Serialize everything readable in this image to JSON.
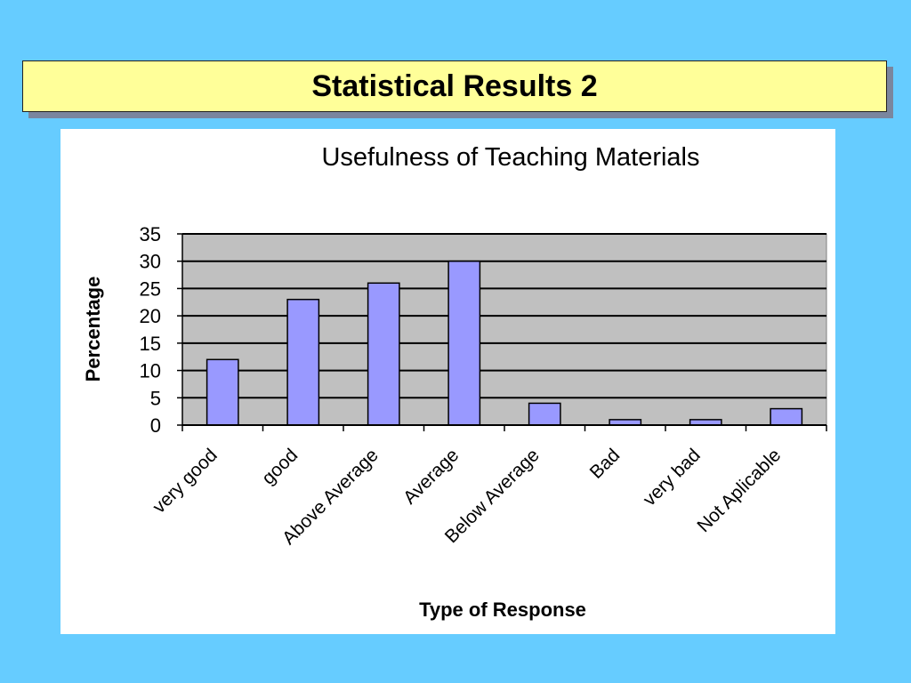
{
  "slide": {
    "title": "Statistical Results 2",
    "background_color": "#66ccff",
    "title_box_color": "#ffff99"
  },
  "chart_data": {
    "type": "bar",
    "title": "Usefulness of Teaching Materials",
    "xlabel": "Type of Response",
    "ylabel": "Percentage",
    "categories": [
      "very good",
      "good",
      "Above Average",
      "Average",
      "Below Average",
      "Bad",
      "very bad",
      "Not Aplicable"
    ],
    "values": [
      12,
      23,
      26,
      30,
      4,
      1,
      1,
      3
    ],
    "ylim": [
      0,
      35
    ],
    "yticks": [
      0,
      5,
      10,
      15,
      20,
      25,
      30,
      35
    ],
    "grid": true,
    "legend": "none",
    "bar_color": "#9999ff",
    "plot_background": "#c0c0c0"
  }
}
